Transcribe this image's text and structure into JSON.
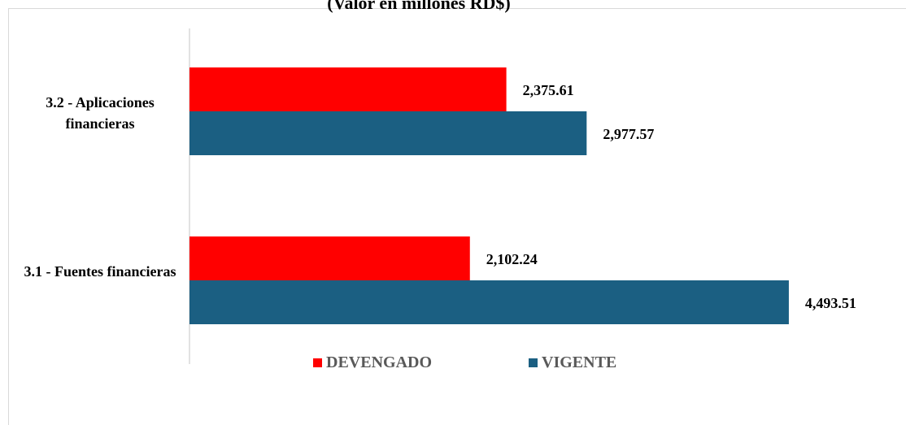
{
  "chart_data": {
    "type": "hbar",
    "subtitle": "(Valor en millones RD$)",
    "categories": [
      "3.2 - Aplicaciones financieras",
      "3.1 - Fuentes financieras"
    ],
    "series": [
      {
        "name": "DEVENGADO",
        "color": "#ff0000",
        "values": [
          2375.61,
          2102.24
        ],
        "value_labels": [
          "2,375.61",
          "2,102.24"
        ]
      },
      {
        "name": "VIGENTE",
        "color": "#1b5f82",
        "values": [
          2977.57,
          4493.51
        ],
        "value_labels": [
          "2,977.57",
          "4,493.51"
        ]
      }
    ],
    "xlim": [
      0,
      5000
    ],
    "legend": "bottom"
  }
}
